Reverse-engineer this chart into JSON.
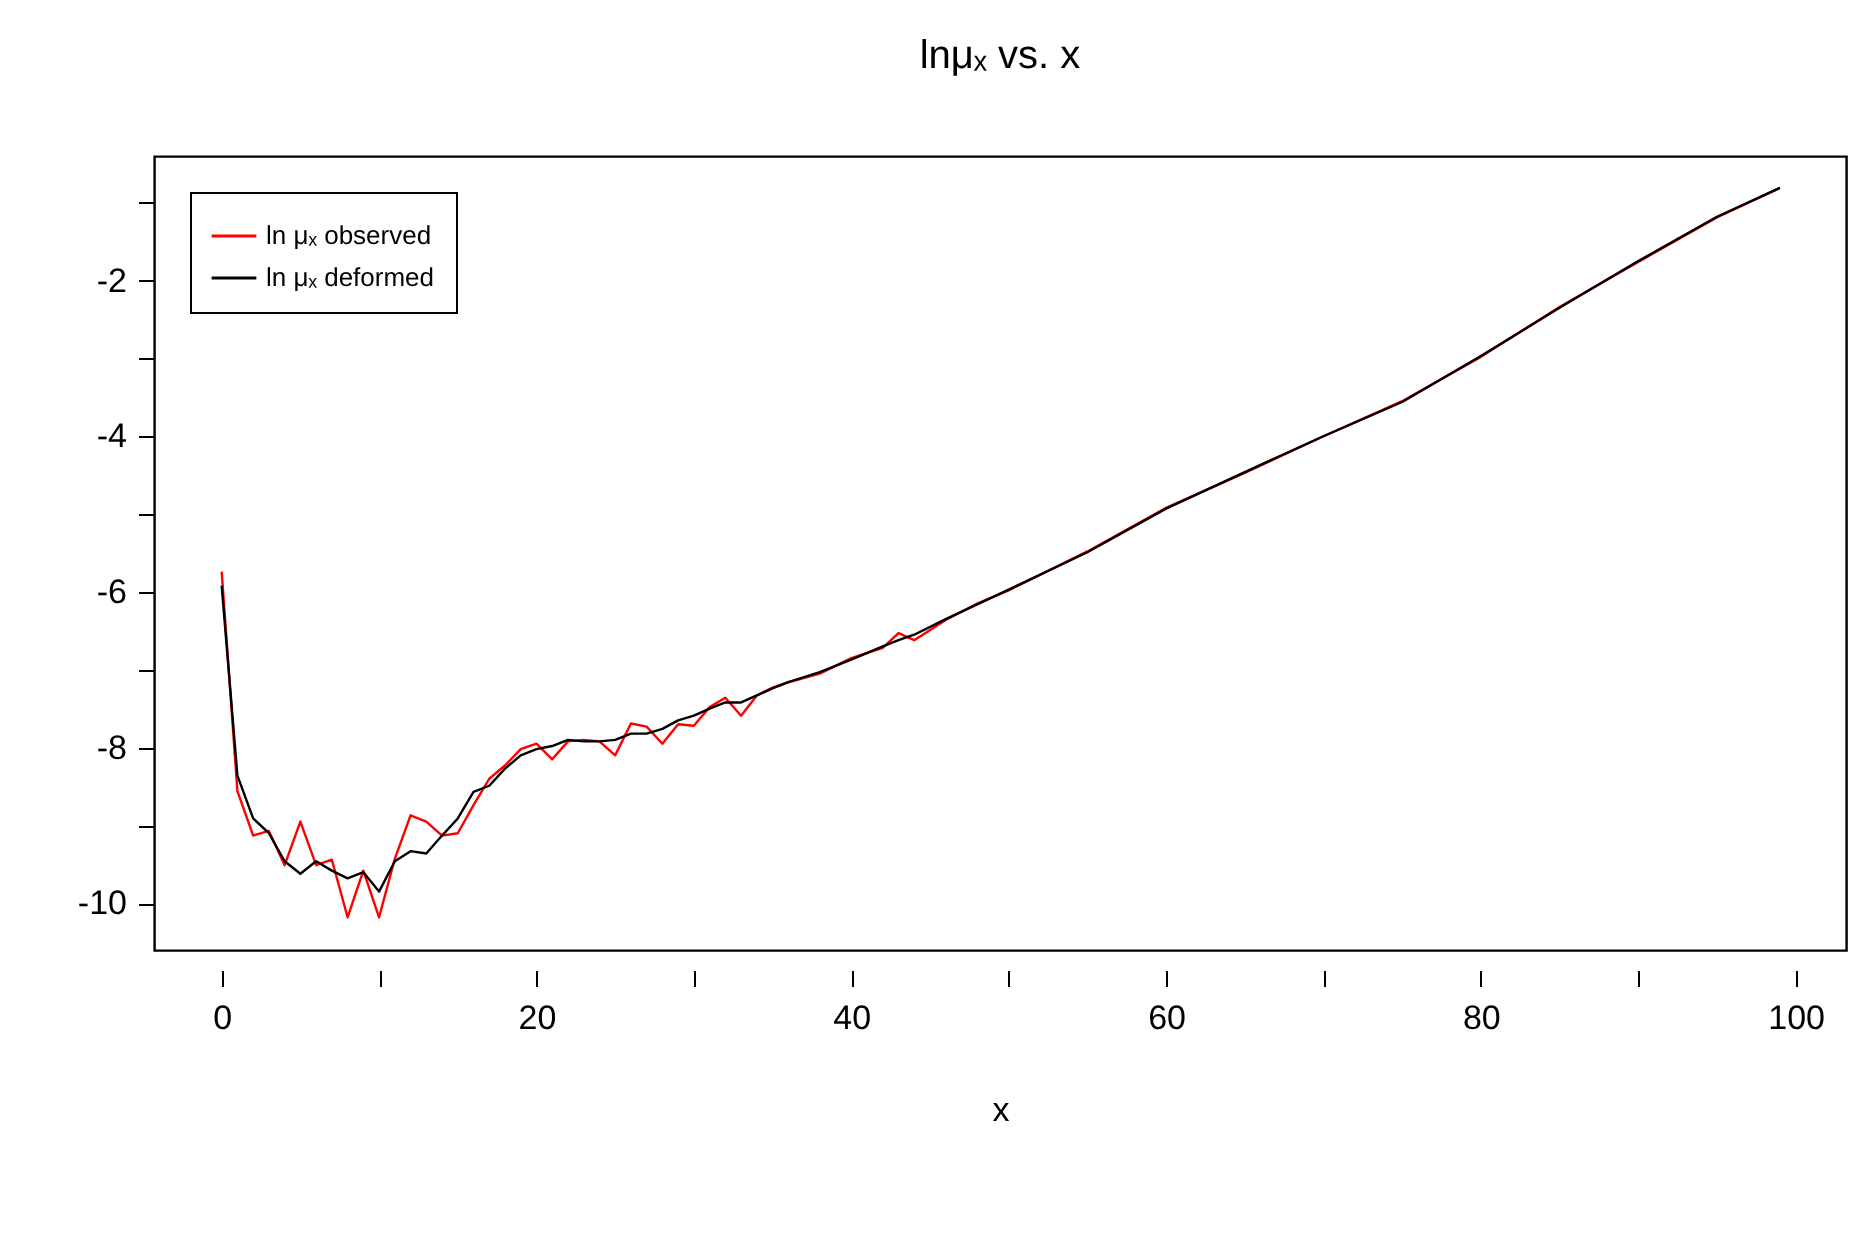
{
  "chart_data": {
    "type": "line",
    "title": "lnμₓ vs. x",
    "xlabel": "x",
    "xlim": [
      -4.3,
      103.2
    ],
    "xticks": [
      0,
      {
        "value": 10,
        "label": null
      },
      20,
      {
        "value": 30,
        "label": null
      },
      40,
      {
        "value": 50,
        "label": null
      },
      60,
      {
        "value": 70,
        "label": null
      },
      80,
      {
        "value": 90,
        "label": null
      },
      100
    ],
    "ylim": [
      -10.6,
      -0.4
    ],
    "yticks": [
      -10,
      {
        "value": -9,
        "label": null
      },
      -8,
      {
        "value": -7,
        "label": null
      },
      -6,
      {
        "value": -5,
        "label": null
      },
      -4,
      {
        "value": -3,
        "label": null
      },
      -2,
      {
        "value": -1,
        "label": null
      }
    ],
    "grid": false,
    "legend": "top left",
    "line_style": "solid",
    "marker": "none",
    "x": [
      0,
      1,
      2,
      3,
      4,
      5,
      6,
      7,
      8,
      9,
      10,
      11,
      12,
      13,
      14,
      15,
      16,
      17,
      18,
      19,
      20,
      21,
      22,
      23,
      24,
      25,
      26,
      27,
      28,
      29,
      30,
      31,
      32,
      33,
      34,
      35,
      36,
      38,
      40,
      42,
      43,
      44,
      46,
      48,
      50,
      55,
      60,
      65,
      70,
      75,
      80,
      85,
      90,
      95,
      99
    ],
    "series": [
      {
        "name": "ln μₓ observed",
        "color": "#ff0000",
        "values": [
          -5.74,
          -8.56,
          -9.13,
          -9.07,
          -9.51,
          -8.95,
          -9.51,
          -9.44,
          -10.18,
          -9.58,
          -10.18,
          -9.43,
          -8.87,
          -8.95,
          -9.13,
          -9.1,
          -8.74,
          -8.4,
          -8.23,
          -8.02,
          -7.95,
          -8.15,
          -7.92,
          -7.9,
          -7.92,
          -8.1,
          -7.69,
          -7.73,
          -7.95,
          -7.7,
          -7.72,
          -7.48,
          -7.36,
          -7.59,
          -7.33,
          -7.23,
          -7.16,
          -7.05,
          -6.85,
          -6.72,
          -6.53,
          -6.62,
          -6.36,
          -6.15,
          -5.98,
          -5.48,
          -4.92,
          -4.47,
          -4.0,
          -3.55,
          -2.98,
          -2.34,
          -1.76,
          -1.19,
          -0.81
        ]
      },
      {
        "name": "ln μₓ deformed",
        "color": "#000000",
        "values": [
          -5.92,
          -8.36,
          -8.91,
          -9.1,
          -9.46,
          -9.62,
          -9.46,
          -9.58,
          -9.68,
          -9.6,
          -9.85,
          -9.46,
          -9.33,
          -9.36,
          -9.13,
          -8.91,
          -8.57,
          -8.49,
          -8.27,
          -8.1,
          -8.02,
          -7.98,
          -7.9,
          -7.92,
          -7.92,
          -7.9,
          -7.82,
          -7.82,
          -7.76,
          -7.65,
          -7.59,
          -7.5,
          -7.42,
          -7.42,
          -7.33,
          -7.24,
          -7.16,
          -7.03,
          -6.87,
          -6.7,
          -6.62,
          -6.55,
          -6.35,
          -6.16,
          -5.97,
          -5.49,
          -4.93,
          -4.46,
          -4.0,
          -3.56,
          -2.97,
          -2.35,
          -1.75,
          -1.18,
          -0.81
        ]
      }
    ]
  }
}
